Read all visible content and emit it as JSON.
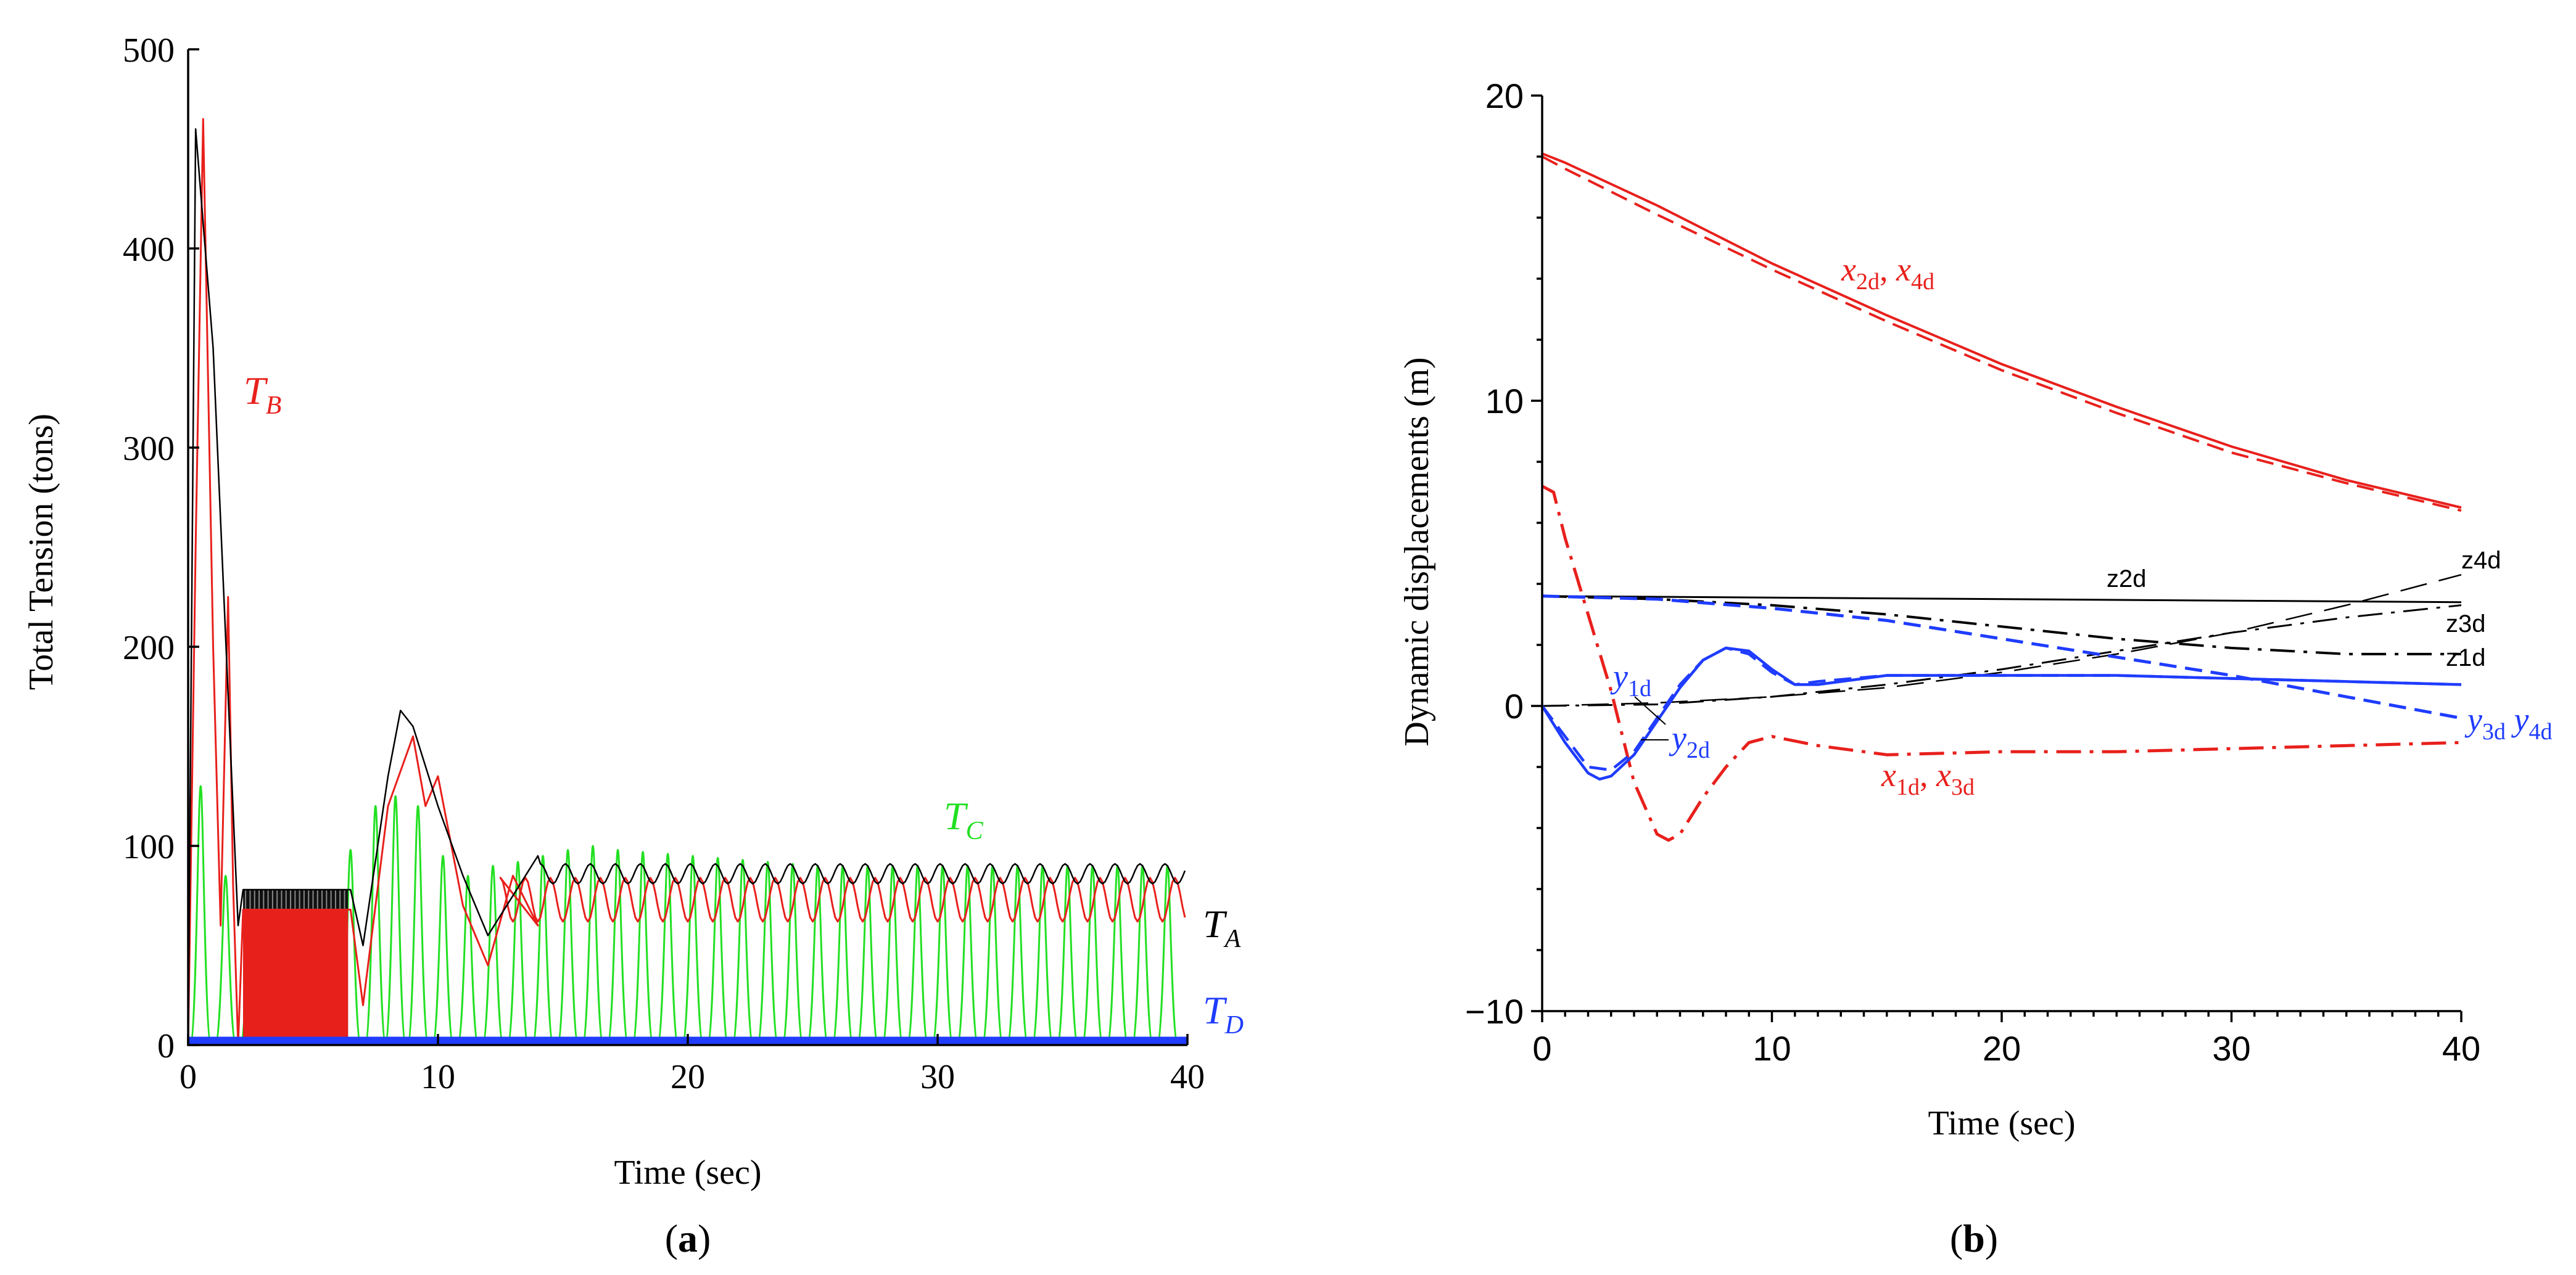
{
  "panels": [
    {
      "id": "a",
      "label": "(a)",
      "label_bold": "a"
    },
    {
      "id": "b",
      "label": "(b)",
      "label_bold": "b"
    }
  ],
  "chart_data": [
    {
      "type": "line",
      "panel": "(a)",
      "xlabel": "Time (sec)",
      "ylabel": "Total Tension (tons)",
      "xlim": [
        0,
        40
      ],
      "ylim": [
        0,
        500
      ],
      "xticks": [
        0,
        10,
        20,
        30,
        40
      ],
      "yticks": [
        0,
        100,
        200,
        300,
        400,
        500
      ],
      "grid": false,
      "colors": {
        "TA": "#000000",
        "TB": "#e8201c",
        "TC": "#22e022",
        "TD": "#1f3cff"
      },
      "series": [
        {
          "name": "TA",
          "label_main": "T",
          "label_sub": "A",
          "color": "#000000",
          "x": [
            0,
            0.3,
            1,
            2,
            2.2,
            6.5,
            7,
            8,
            8.5,
            9,
            10,
            11,
            12,
            12.5,
            14,
            16,
            20,
            25,
            30,
            35,
            40
          ],
          "y": [
            0,
            460,
            350,
            60,
            78,
            78,
            50,
            135,
            168,
            160,
            120,
            85,
            55,
            65,
            95,
            88,
            85,
            85,
            88,
            87,
            88
          ]
        },
        {
          "name": "TB",
          "label_main": "T",
          "label_sub": "B",
          "color": "#e8201c",
          "x": [
            0,
            0.3,
            0.6,
            1.0,
            1.3,
            1.6,
            1.8,
            2.0,
            2.2,
            6.5,
            7,
            8,
            9,
            9.5,
            10,
            11,
            12,
            13,
            14,
            15,
            20,
            25,
            30,
            35,
            40
          ],
          "y": [
            0,
            250,
            465,
            200,
            60,
            225,
            80,
            0,
            68,
            68,
            20,
            120,
            155,
            120,
            135,
            70,
            40,
            85,
            60,
            90,
            65,
            85,
            65,
            85,
            65
          ]
        },
        {
          "name": "TC",
          "label_main": "T",
          "label_sub": "C",
          "color": "#22e022",
          "peaks_x": [
            0.5,
            1.5,
            2.5,
            3.5,
            4.5,
            5.5,
            6.5,
            7.5,
            8.3,
            9.2,
            10.2,
            11.2,
            12.2,
            13.2,
            14.2,
            15.2,
            16.2,
            17.2,
            18.2,
            19.2,
            20.2,
            21.2,
            22.2,
            23.2,
            24.2,
            25.2,
            26.2,
            27.2,
            28.2,
            29.2,
            30.2,
            31.2,
            32.2,
            33.2,
            34.2,
            35.2,
            36.2,
            37.2,
            38.2,
            39.2
          ],
          "peaks_y": [
            130,
            85,
            75,
            75,
            75,
            75,
            98,
            120,
            125,
            120,
            95,
            85,
            90,
            92,
            95,
            98,
            100,
            98,
            97,
            96,
            95,
            94,
            93,
            92,
            91,
            90,
            90,
            90,
            90,
            90,
            90,
            90,
            90,
            90,
            90,
            90,
            90,
            90,
            90,
            90
          ]
        },
        {
          "name": "TD",
          "label_main": "T",
          "label_sub": "D",
          "color": "#1f3cff",
          "x": [
            0,
            40
          ],
          "y": [
            2,
            2
          ]
        }
      ]
    },
    {
      "type": "line",
      "panel": "(b)",
      "xlabel": "Time (sec)",
      "ylabel": "Dynamic displacements (m)",
      "xlim": [
        0,
        40
      ],
      "ylim": [
        -10,
        20
      ],
      "xticks": [
        0,
        10,
        20,
        30,
        40
      ],
      "yticks": [
        -10,
        0,
        10,
        20
      ],
      "ytick_labels": [
        "−10",
        "0",
        "10",
        "20"
      ],
      "grid": false,
      "series": [
        {
          "name": "x2d_x4d",
          "color": "#e8201c",
          "dash": "solid",
          "x": [
            0,
            1,
            5,
            10,
            15,
            20,
            25,
            30,
            35,
            40
          ],
          "y": [
            18.1,
            17.8,
            16.4,
            14.5,
            12.8,
            11.2,
            9.8,
            8.5,
            7.4,
            6.5
          ]
        },
        {
          "name": "x2d_x4d_b",
          "color": "#e8201c",
          "dash": "dashed",
          "x": [
            0,
            1,
            5,
            10,
            15,
            20,
            25,
            30,
            35,
            40
          ],
          "y": [
            18.0,
            17.6,
            16.1,
            14.3,
            12.6,
            11.0,
            9.6,
            8.3,
            7.3,
            6.4
          ]
        },
        {
          "name": "x1d_x3d",
          "color": "#e8201c",
          "dash": "dashdot",
          "x": [
            0,
            0.5,
            1,
            2,
            3,
            4,
            5,
            5.5,
            6,
            7,
            8,
            9,
            10,
            12,
            15,
            20,
            25,
            30,
            35,
            40
          ],
          "y": [
            7.2,
            7.0,
            5.5,
            3.0,
            0.5,
            -2.5,
            -4.2,
            -4.4,
            -4.2,
            -3.0,
            -2.0,
            -1.2,
            -1.0,
            -1.3,
            -1.6,
            -1.5,
            -1.5,
            -1.4,
            -1.3,
            -1.2
          ]
        },
        {
          "name": "z2d",
          "color": "#000000",
          "dash": "solid",
          "x": [
            0,
            40
          ],
          "y": [
            3.6,
            3.4
          ]
        },
        {
          "name": "z4d",
          "color": "#000000",
          "dash": "longdash",
          "x": [
            0,
            5,
            10,
            15,
            20,
            25,
            30,
            35,
            40
          ],
          "y": [
            0,
            0.1,
            0.3,
            0.6,
            1.1,
            1.7,
            2.4,
            3.3,
            4.3
          ]
        },
        {
          "name": "z3d",
          "color": "#000000",
          "dash": "dashdot",
          "x": [
            0,
            5,
            10,
            15,
            20,
            25,
            30,
            35,
            40
          ],
          "y": [
            3.6,
            3.5,
            3.3,
            3.0,
            2.6,
            2.2,
            1.9,
            1.7,
            1.7
          ]
        },
        {
          "name": "z1d",
          "color": "#000000",
          "dash": "dashdot",
          "x": [
            0,
            5,
            10,
            15,
            20,
            25,
            30,
            35,
            40
          ],
          "y": [
            0,
            0.05,
            0.3,
            0.7,
            1.2,
            1.8,
            2.4,
            2.9,
            3.3
          ]
        },
        {
          "name": "y1d_y2d",
          "color": "#1f3cff",
          "dash": "solid",
          "x": [
            0,
            1,
            2,
            2.5,
            3,
            4,
            5,
            6,
            7,
            8,
            9,
            10,
            11,
            12,
            15,
            20,
            25,
            30,
            35,
            40
          ],
          "y": [
            0,
            -1.2,
            -2.2,
            -2.4,
            -2.3,
            -1.6,
            -0.5,
            0.6,
            1.5,
            1.9,
            1.8,
            1.2,
            0.7,
            0.7,
            1.0,
            1.0,
            1.0,
            0.9,
            0.8,
            0.7
          ]
        },
        {
          "name": "y1d_y2d_b",
          "color": "#1f3cff",
          "dash": "dashed",
          "x": [
            0,
            1,
            2,
            3,
            4,
            5,
            6,
            7,
            8,
            9,
            10,
            11,
            12,
            15,
            20,
            25,
            30,
            35,
            40
          ],
          "y": [
            0,
            -1.0,
            -2.0,
            -2.1,
            -1.5,
            -0.4,
            0.7,
            1.5,
            1.9,
            1.7,
            1.1,
            0.7,
            0.8,
            1.0,
            1.0,
            1.0,
            0.9,
            0.8,
            0.7
          ]
        },
        {
          "name": "y3d_y4d",
          "color": "#1f3cff",
          "dash": "dashed",
          "x": [
            0,
            5,
            10,
            15,
            20,
            25,
            30,
            35,
            40
          ],
          "y": [
            3.6,
            3.5,
            3.2,
            2.8,
            2.2,
            1.6,
            1.0,
            0.3,
            -0.4
          ]
        }
      ],
      "annotations": [
        {
          "name": "label-x2d-x4d",
          "parts": [
            [
              "x",
              "2d"
            ],
            [
              "x",
              "4d"
            ]
          ],
          "sep": ", ",
          "color": "#e8201c"
        },
        {
          "name": "label-x1d-x3d",
          "parts": [
            [
              "x",
              "1d"
            ],
            [
              "x",
              "3d"
            ]
          ],
          "sep": ", ",
          "color": "#e8201c"
        },
        {
          "name": "label-y1d",
          "parts": [
            [
              "y",
              "1d"
            ]
          ],
          "sep": "",
          "color": "#1f3cff"
        },
        {
          "name": "label-y2d",
          "parts": [
            [
              "y",
              "2d"
            ]
          ],
          "sep": "",
          "color": "#1f3cff"
        },
        {
          "name": "label-y3d-y4d",
          "parts": [
            [
              "y",
              "3d"
            ],
            [
              "y",
              "4d"
            ]
          ],
          "sep": " ",
          "color": "#1f3cff"
        },
        {
          "name": "label-z2d",
          "text": "z2d",
          "color": "#000000"
        },
        {
          "name": "label-z4d",
          "text": "z4d",
          "color": "#000000"
        },
        {
          "name": "label-z3d",
          "text": "z3d",
          "color": "#000000"
        },
        {
          "name": "label-z1d",
          "text": "z1d",
          "color": "#000000"
        }
      ]
    }
  ]
}
